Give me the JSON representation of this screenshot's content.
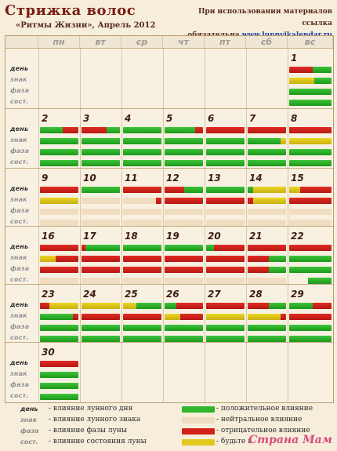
{
  "header": {
    "title": "Стрижка волос",
    "subtitle": "«Ритмы Жизни», Апрель 2012",
    "notice_line1": "При использовании материалов ссылка",
    "notice_line2": "обязательна",
    "link_text": "www.lunnyjkalendar.ru"
  },
  "weekdays": [
    "пн",
    "вт",
    "ср",
    "чт",
    "пт",
    "сб",
    "вс"
  ],
  "row_labels": [
    "день",
    "знак",
    "фаза",
    "сост."
  ],
  "colors": {
    "G": "#2fb62c",
    "R": "#d3211a",
    "Y": "#e0c81c",
    "B": "#f0dcc0"
  },
  "weeks": [
    [
      {
        "col": 6,
        "day": "1",
        "bars": [
          [
            [
              "R",
              0.55
            ],
            [
              "G",
              0.45
            ]
          ],
          [
            [
              "Y",
              0.6
            ],
            [
              "G",
              0.4
            ]
          ],
          [
            [
              "G",
              1
            ]
          ],
          [
            [
              "G",
              1
            ]
          ]
        ]
      }
    ],
    [
      {
        "col": 0,
        "day": "2",
        "bars": [
          [
            [
              "G",
              0.6
            ],
            [
              "R",
              0.4
            ]
          ],
          [
            [
              "G",
              1
            ]
          ],
          [
            [
              "G",
              1
            ]
          ],
          [
            [
              "G",
              1
            ]
          ]
        ]
      },
      {
        "col": 1,
        "day": "3",
        "bars": [
          [
            [
              "R",
              0.65
            ],
            [
              "G",
              0.35
            ]
          ],
          [
            [
              "G",
              1
            ]
          ],
          [
            [
              "G",
              1
            ]
          ],
          [
            [
              "G",
              1
            ]
          ]
        ]
      },
      {
        "col": 2,
        "day": "4",
        "bars": [
          [
            [
              "G",
              1
            ]
          ],
          [
            [
              "G",
              1
            ]
          ],
          [
            [
              "G",
              1
            ]
          ],
          [
            [
              "G",
              1
            ]
          ]
        ]
      },
      {
        "col": 3,
        "day": "5",
        "bars": [
          [
            [
              "G",
              0.8
            ],
            [
              "R",
              0.2
            ]
          ],
          [
            [
              "G",
              1
            ]
          ],
          [
            [
              "G",
              1
            ]
          ],
          [
            [
              "G",
              1
            ]
          ]
        ]
      },
      {
        "col": 4,
        "day": "6",
        "bars": [
          [
            [
              "R",
              1
            ]
          ],
          [
            [
              "G",
              1
            ]
          ],
          [
            [
              "G",
              1
            ]
          ],
          [
            [
              "G",
              1
            ]
          ]
        ]
      },
      {
        "col": 5,
        "day": "7",
        "bars": [
          [
            [
              "R",
              1
            ]
          ],
          [
            [
              "G",
              0.85
            ],
            [
              "Y",
              0.15
            ]
          ],
          [
            [
              "G",
              1
            ]
          ],
          [
            [
              "G",
              1
            ]
          ]
        ]
      },
      {
        "col": 6,
        "day": "8",
        "bars": [
          [
            [
              "R",
              1
            ]
          ],
          [
            [
              "Y",
              1
            ]
          ],
          [
            [
              "G",
              1
            ]
          ],
          [
            [
              "G",
              1
            ]
          ]
        ]
      }
    ],
    [
      {
        "col": 0,
        "day": "9",
        "bars": [
          [
            [
              "R",
              1
            ]
          ],
          [
            [
              "Y",
              1
            ]
          ],
          [
            [
              "B",
              1
            ]
          ],
          [
            [
              "B",
              1
            ]
          ]
        ]
      },
      {
        "col": 1,
        "day": "10",
        "bars": [
          [
            [
              "G",
              1
            ]
          ],
          [
            [
              "B",
              1
            ]
          ],
          [
            [
              "B",
              1
            ]
          ],
          [
            [
              "B",
              1
            ]
          ]
        ]
      },
      {
        "col": 2,
        "day": "11",
        "bars": [
          [
            [
              "R",
              1
            ]
          ],
          [
            [
              "B",
              0.85
            ],
            [
              "R",
              0.15
            ]
          ],
          [
            [
              "B",
              1
            ]
          ],
          [
            [
              "B",
              1
            ]
          ]
        ]
      },
      {
        "col": 3,
        "day": "12",
        "bars": [
          [
            [
              "R",
              0.5
            ],
            [
              "G",
              0.5
            ]
          ],
          [
            [
              "R",
              1
            ]
          ],
          [
            [
              "B",
              1
            ]
          ],
          [
            [
              "B",
              1
            ]
          ]
        ]
      },
      {
        "col": 4,
        "day": "13",
        "bars": [
          [
            [
              "G",
              1
            ]
          ],
          [
            [
              "R",
              1
            ]
          ],
          [
            [
              "B",
              1
            ]
          ],
          [
            [
              "B",
              1
            ]
          ]
        ]
      },
      {
        "col": 5,
        "day": "14",
        "bars": [
          [
            [
              "G",
              0.15
            ],
            [
              "Y",
              0.85
            ]
          ],
          [
            [
              "R",
              0.15
            ],
            [
              "Y",
              0.85
            ]
          ],
          [
            [
              "B",
              1
            ]
          ],
          [
            [
              "B",
              1
            ]
          ]
        ]
      },
      {
        "col": 6,
        "day": "15",
        "bars": [
          [
            [
              "Y",
              0.25
            ],
            [
              "R",
              0.75
            ]
          ],
          [
            [
              "R",
              1
            ]
          ],
          [
            [
              "B",
              1
            ]
          ],
          [
            [
              "B",
              1
            ]
          ]
        ]
      }
    ],
    [
      {
        "col": 0,
        "day": "16",
        "bars": [
          [
            [
              "R",
              1
            ]
          ],
          [
            [
              "Y",
              0.4
            ],
            [
              "R",
              0.6
            ]
          ],
          [
            [
              "R",
              1
            ]
          ],
          [
            [
              "B",
              1
            ]
          ]
        ]
      },
      {
        "col": 1,
        "day": "17",
        "bars": [
          [
            [
              "R",
              0.1
            ],
            [
              "G",
              0.9
            ]
          ],
          [
            [
              "R",
              1
            ]
          ],
          [
            [
              "R",
              1
            ]
          ],
          [
            [
              "B",
              1
            ]
          ]
        ]
      },
      {
        "col": 2,
        "day": "18",
        "bars": [
          [
            [
              "G",
              1
            ]
          ],
          [
            [
              "R",
              1
            ]
          ],
          [
            [
              "R",
              1
            ]
          ],
          [
            [
              "B",
              1
            ]
          ]
        ]
      },
      {
        "col": 3,
        "day": "19",
        "bars": [
          [
            [
              "G",
              1
            ]
          ],
          [
            [
              "R",
              1
            ]
          ],
          [
            [
              "R",
              1
            ]
          ],
          [
            [
              "B",
              1
            ]
          ]
        ]
      },
      {
        "col": 4,
        "day": "20",
        "bars": [
          [
            [
              "G",
              0.2
            ],
            [
              "R",
              0.8
            ]
          ],
          [
            [
              "R",
              1
            ]
          ],
          [
            [
              "R",
              1
            ]
          ],
          [
            [
              "B",
              1
            ]
          ]
        ]
      },
      {
        "col": 5,
        "day": "21",
        "bars": [
          [
            [
              "R",
              1
            ]
          ],
          [
            [
              "R",
              0.55
            ],
            [
              "G",
              0.45
            ]
          ],
          [
            [
              "R",
              0.55
            ],
            [
              "G",
              0.45
            ]
          ],
          [
            [
              "B",
              1
            ]
          ]
        ]
      },
      {
        "col": 6,
        "day": "22",
        "bars": [
          [
            [
              "R",
              1
            ]
          ],
          [
            [
              "G",
              1
            ]
          ],
          [
            [
              "G",
              1
            ]
          ],
          [
            [
              "N",
              0.45
            ],
            [
              "G",
              0.55
            ]
          ]
        ]
      }
    ],
    [
      {
        "col": 0,
        "day": "23",
        "bars": [
          [
            [
              "R",
              0.25
            ],
            [
              "Y",
              0.75
            ]
          ],
          [
            [
              "G",
              0.85
            ],
            [
              "R",
              0.15
            ]
          ],
          [
            [
              "G",
              1
            ]
          ],
          [
            [
              "G",
              1
            ]
          ]
        ]
      },
      {
        "col": 1,
        "day": "24",
        "bars": [
          [
            [
              "Y",
              1
            ]
          ],
          [
            [
              "R",
              1
            ]
          ],
          [
            [
              "G",
              1
            ]
          ],
          [
            [
              "G",
              1
            ]
          ]
        ]
      },
      {
        "col": 2,
        "day": "25",
        "bars": [
          [
            [
              "Y",
              0.35
            ],
            [
              "G",
              0.65
            ]
          ],
          [
            [
              "R",
              1
            ]
          ],
          [
            [
              "G",
              1
            ]
          ],
          [
            [
              "G",
              1
            ]
          ]
        ]
      },
      {
        "col": 3,
        "day": "26",
        "bars": [
          [
            [
              "G",
              0.3
            ],
            [
              "R",
              0.7
            ]
          ],
          [
            [
              "Y",
              0.4
            ],
            [
              "R",
              0.6
            ]
          ],
          [
            [
              "G",
              1
            ]
          ],
          [
            [
              "G",
              1
            ]
          ]
        ]
      },
      {
        "col": 4,
        "day": "27",
        "bars": [
          [
            [
              "R",
              1
            ]
          ],
          [
            [
              "Y",
              1
            ]
          ],
          [
            [
              "G",
              1
            ]
          ],
          [
            [
              "G",
              1
            ]
          ]
        ]
      },
      {
        "col": 5,
        "day": "28",
        "bars": [
          [
            [
              "R",
              0.55
            ],
            [
              "G",
              0.45
            ]
          ],
          [
            [
              "Y",
              0.85
            ],
            [
              "R",
              0.15
            ]
          ],
          [
            [
              "G",
              1
            ]
          ],
          [
            [
              "G",
              1
            ]
          ]
        ]
      },
      {
        "col": 6,
        "day": "29",
        "bars": [
          [
            [
              "G",
              0.55
            ],
            [
              "R",
              0.45
            ]
          ],
          [
            [
              "R",
              1
            ]
          ],
          [
            [
              "G",
              1
            ]
          ],
          [
            [
              "G",
              1
            ]
          ]
        ]
      }
    ],
    [
      {
        "col": 0,
        "day": "30",
        "bars": [
          [
            [
              "R",
              1
            ]
          ],
          [
            [
              "G",
              1
            ]
          ],
          [
            [
              "G",
              1
            ]
          ],
          [
            [
              "G",
              1
            ]
          ]
        ]
      }
    ]
  ],
  "legend": {
    "left": [
      {
        "label": "день",
        "text": "- влияние лунного дня"
      },
      {
        "label": "знак",
        "text": "- влияние лунного знака"
      },
      {
        "label": "фаза",
        "text": "- влияние фазы луны"
      },
      {
        "label": "сост.",
        "text": "- влияние состояния луны"
      }
    ],
    "right": [
      {
        "color": "G",
        "text": "- положительное влияние"
      },
      {
        "color": "B",
        "text": "- нейтральное влияние"
      },
      {
        "color": "R",
        "text": "- отрицательное влияние"
      },
      {
        "color": "Y",
        "text": "- будьте в"
      }
    ]
  },
  "watermark": "Страна Мам"
}
